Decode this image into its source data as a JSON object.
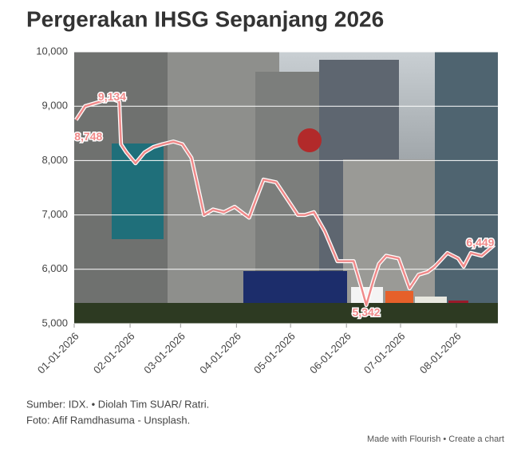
{
  "chart_data": {
    "type": "line",
    "title": "Pergerakan IHSG Sepanjang 2026",
    "x": [
      "01-02-2026",
      "01-07-2026",
      "01-12-2026",
      "01-17-2026",
      "01-22-2026",
      "01-26-2026",
      "01-27-2026",
      "01-30-2026",
      "02-04-2026",
      "02-09-2026",
      "02-14-2026",
      "02-19-2026",
      "02-25-2026",
      "03-02-2026",
      "03-07-2026",
      "03-10-2026",
      "03-14-2026",
      "03-19-2026",
      "03-25-2026",
      "03-31-2026",
      "04-04-2026",
      "04-08-2026",
      "04-12-2026",
      "04-16-2026",
      "04-23-2026",
      "04-28-2026",
      "05-05-2026",
      "05-09-2026",
      "05-14-2026",
      "05-20-2026",
      "05-27-2026",
      "06-01-2026",
      "06-05-2026",
      "06-09-2026",
      "06-12-2026",
      "06-16-2026",
      "06-19-2026",
      "06-23-2026",
      "06-30-2026",
      "07-06-2026",
      "07-11-2026",
      "07-16-2026",
      "07-20-2026",
      "07-27-2026",
      "08-02-2026",
      "08-05-2026",
      "08-09-2026",
      "08-15-2026",
      "08-22-2026"
    ],
    "series": [
      {
        "name": "IHSG",
        "color": "#f08a8a",
        "values": [
          8748,
          9000,
          9050,
          9100,
          9134,
          9080,
          8300,
          8150,
          7950,
          8150,
          8250,
          8300,
          8350,
          8300,
          8050,
          7600,
          7000,
          7100,
          7050,
          7150,
          7050,
          6950,
          7300,
          7650,
          7600,
          7350,
          7000,
          7000,
          7050,
          6700,
          6150,
          6150,
          6150,
          5700,
          5342,
          5800,
          6100,
          6250,
          6200,
          5650,
          5900,
          5950,
          6050,
          6300,
          6200,
          6050,
          6300,
          6250,
          6449
        ],
        "value_labels": [
          "8,748",
          null,
          null,
          null,
          "9,134",
          null,
          null,
          null,
          null,
          null,
          null,
          null,
          null,
          null,
          null,
          null,
          null,
          null,
          null,
          null,
          null,
          null,
          null,
          null,
          null,
          null,
          null,
          null,
          null,
          null,
          null,
          null,
          null,
          null,
          "5,342",
          null,
          null,
          null,
          null,
          null,
          null,
          null,
          null,
          null,
          null,
          null,
          null,
          null,
          "6,449"
        ]
      }
    ],
    "xlim": [
      "01-01-2026",
      "08-24-2026"
    ],
    "xticks": [
      "01-01-2026",
      "02-01-2026",
      "03-01-2026",
      "04-01-2026",
      "05-01-2026",
      "06-01-2026",
      "07-01-2026",
      "08-01-2026"
    ],
    "ylim": [
      5000,
      10000
    ],
    "yticks": [
      {
        "value": 5000,
        "label": "5,000"
      },
      {
        "value": 6000,
        "label": "6,000"
      },
      {
        "value": 7000,
        "label": "7,000"
      },
      {
        "value": 8000,
        "label": "8,000"
      },
      {
        "value": 9000,
        "label": "9,000"
      },
      {
        "value": 10000,
        "label": "10,000"
      }
    ],
    "grid": true,
    "source": "Sumber: IDX. • Diolah Tim SUAR/ Ratri.",
    "credit": "Foto: Afif Ramdhasuma - Unsplash.",
    "footer": "Made with Flourish • Create a chart"
  }
}
